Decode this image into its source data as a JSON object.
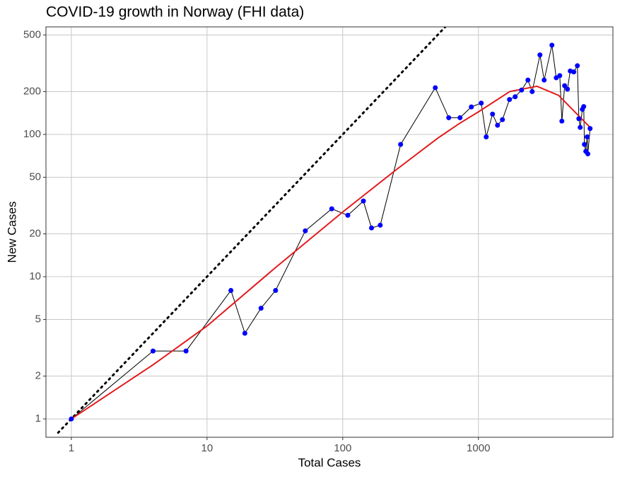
{
  "chart_data": {
    "type": "line",
    "title": "COVID-19 growth in Norway (FHI data)",
    "x_label": "Total Cases",
    "y_label": "New Cases",
    "log_x": true,
    "log_y": true,
    "grid": true,
    "xlim": [
      0.65,
      9800
    ],
    "xticks": [
      1,
      10,
      100,
      1000
    ],
    "ylim": [
      0.743,
      570
    ],
    "yticks": [
      1,
      2,
      5,
      10,
      20,
      50,
      100,
      200,
      500
    ],
    "series": [
      {
        "color": "#000000",
        "style": "dotted",
        "x": [
          0.8,
          570
        ],
        "values": [
          0.8,
          570
        ]
      },
      {
        "color": "#000000",
        "marker_color": "#0000ff",
        "style": "line-points",
        "x": [
          1,
          4,
          7,
          15,
          19,
          25,
          32,
          53,
          83,
          109,
          142,
          163,
          189,
          267,
          481,
          604,
          732,
          887,
          1049,
          1141,
          1271,
          1383,
          1503,
          1694,
          1865,
          2079,
          2316,
          2490,
          2840,
          3050,
          3480,
          3745,
          3975,
          4120,
          4318,
          4530,
          4750,
          5045,
          5360,
          5495,
          5623,
          5834,
          5970,
          6040,
          6180,
          6330,
          6400,
          6650
        ],
        "values": [
          1,
          3,
          3,
          8,
          4,
          6,
          8,
          21,
          30,
          27,
          34,
          22,
          23,
          85,
          213,
          131,
          131,
          156,
          166,
          96,
          139,
          116,
          127,
          176,
          184,
          205,
          241,
          200,
          362,
          241,
          424,
          250,
          259,
          124,
          220,
          208,
          279,
          275,
          304,
          129,
          112,
          150,
          157,
          85,
          76,
          96,
          73,
          110
        ]
      },
      {
        "color": "#e31a1c",
        "style": "smooth",
        "x": [
          1,
          4,
          10,
          32,
          100,
          245,
          500,
          720,
          1000,
          1700,
          2700,
          3900,
          6650
        ],
        "values": [
          1,
          2.4,
          4.5,
          11.6,
          28.5,
          56,
          94,
          119,
          144,
          200,
          218,
          188,
          112
        ]
      }
    ]
  }
}
